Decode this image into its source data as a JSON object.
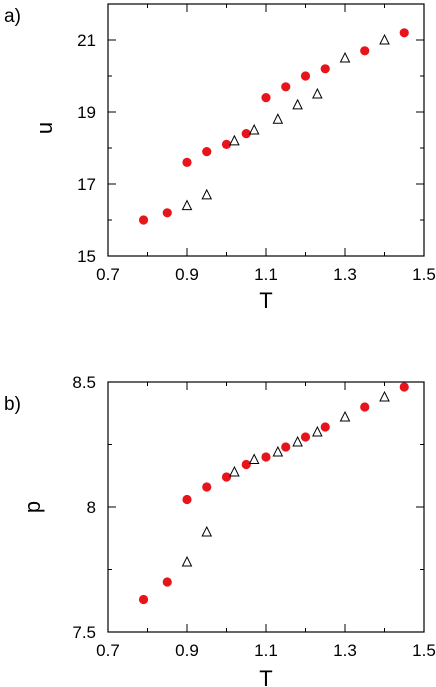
{
  "chart_data": [
    {
      "type": "scatter",
      "panel_label": "a)",
      "xlabel": "T",
      "ylabel": "u",
      "xlim": [
        0.7,
        1.5
      ],
      "ylim": [
        15,
        22
      ],
      "x_major_ticks": [
        0.7,
        0.9,
        1.1,
        1.3,
        1.5
      ],
      "x_tick_labels": [
        "0.7",
        "0.9",
        "1.1",
        "1.3",
        "1.5"
      ],
      "y_major_ticks": [
        15,
        17,
        19,
        21
      ],
      "y_tick_labels": [
        "15",
        "17",
        "19",
        "21"
      ],
      "grid": false,
      "series": [
        {
          "marker": "filled-circle",
          "color": "#e8141c",
          "x": [
            0.79,
            0.85,
            0.9,
            0.95,
            1.0,
            1.05,
            1.1,
            1.15,
            1.2,
            1.25,
            1.35,
            1.45
          ],
          "y": [
            16.0,
            16.2,
            17.6,
            17.9,
            18.1,
            18.4,
            19.4,
            19.7,
            20.0,
            20.2,
            20.7,
            21.2
          ]
        },
        {
          "marker": "open-triangle",
          "color": "#000000",
          "x": [
            0.9,
            0.95,
            1.02,
            1.07,
            1.13,
            1.18,
            1.23,
            1.3,
            1.4
          ],
          "y": [
            16.4,
            16.7,
            18.2,
            18.5,
            18.8,
            19.2,
            19.5,
            20.5,
            21.0
          ]
        }
      ]
    },
    {
      "type": "scatter",
      "panel_label": "b)",
      "xlabel": "T",
      "ylabel": "p",
      "xlim": [
        0.7,
        1.5
      ],
      "ylim": [
        7.5,
        8.5
      ],
      "x_major_ticks": [
        0.7,
        0.9,
        1.1,
        1.3,
        1.5
      ],
      "x_tick_labels": [
        "0.7",
        "0.9",
        "1.1",
        "1.3",
        "1.5"
      ],
      "y_major_ticks": [
        7.5,
        8.0,
        8.5
      ],
      "y_tick_labels": [
        "7.5",
        "8",
        "8.5"
      ],
      "grid": false,
      "series": [
        {
          "marker": "filled-circle",
          "color": "#e8141c",
          "x": [
            0.79,
            0.85,
            0.9,
            0.95,
            1.0,
            1.05,
            1.1,
            1.15,
            1.2,
            1.25,
            1.35,
            1.45
          ],
          "y": [
            7.63,
            7.7,
            8.03,
            8.08,
            8.12,
            8.17,
            8.2,
            8.24,
            8.28,
            8.32,
            8.4,
            8.48
          ]
        },
        {
          "marker": "open-triangle",
          "color": "#000000",
          "x": [
            0.9,
            0.95,
            1.02,
            1.07,
            1.13,
            1.18,
            1.23,
            1.3,
            1.4
          ],
          "y": [
            7.78,
            7.9,
            8.14,
            8.19,
            8.22,
            8.26,
            8.3,
            8.36,
            8.44
          ]
        }
      ]
    }
  ]
}
